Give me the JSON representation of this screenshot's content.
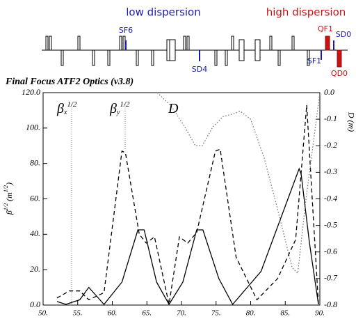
{
  "chart_data": {
    "type": "line",
    "title": "Final Focus  ATF2 Optics (v3.8)",
    "region_labels": [
      {
        "text": "low dispersion",
        "color": "#1a1aa8"
      },
      {
        "text": "high dispersion",
        "color": "#cc1111"
      }
    ],
    "lattice_labels": [
      {
        "text": "SF6",
        "color": "#1a1aa8"
      },
      {
        "text": "SD4",
        "color": "#1a1aa8"
      },
      {
        "text": "QF1",
        "color": "#cc1111"
      },
      {
        "text": "SD0",
        "color": "#1a1aa8"
      },
      {
        "text": "SF1",
        "color": "#1a1aa8"
      },
      {
        "text": "QD0",
        "color": "#cc1111"
      }
    ],
    "y_label": {
      "main": "β",
      "sup": "1/2",
      "unit": "(m",
      "unit_sup": "1/2",
      "close": ")"
    },
    "y2_label": "D  (m)",
    "xlim": [
      50,
      90
    ],
    "xticks": [
      {
        "value": 50,
        "label": "50."
      },
      {
        "value": 55,
        "label": "55."
      },
      {
        "value": 60,
        "label": "60."
      },
      {
        "value": 65,
        "label": "65."
      },
      {
        "value": 70,
        "label": "70."
      },
      {
        "value": 75,
        "label": "75."
      },
      {
        "value": 80,
        "label": "80."
      },
      {
        "value": 85,
        "label": "85."
      },
      {
        "value": 90,
        "label": "90."
      }
    ],
    "ylim": [
      0,
      120
    ],
    "yticks": [
      {
        "value": 0,
        "label": "0.0"
      },
      {
        "value": 20,
        "label": "20."
      },
      {
        "value": 40,
        "label": "40."
      },
      {
        "value": 60,
        "label": "60."
      },
      {
        "value": 80,
        "label": "80."
      },
      {
        "value": 100,
        "label": "100."
      },
      {
        "value": 120,
        "label": "120.0"
      }
    ],
    "y2lim": [
      -0.8,
      0
    ],
    "y2ticks": [
      -0.8,
      -0.7,
      -0.6,
      -0.5,
      -0.4,
      -0.3,
      -0.2,
      -0.1,
      {
        "value": 0,
        "label": "0.0"
      }
    ],
    "series": [
      {
        "name": "β",
        "subscript": "x",
        "superscript": "1/2",
        "color": "#000000",
        "dash": "none",
        "x": [
          52,
          53.3,
          55.3,
          56.6,
          58.8,
          61.4,
          63.7,
          64.6,
          66.4,
          68.2,
          70.2,
          72.2,
          73.1,
          75.4,
          77.4,
          81.5,
          87,
          87.3,
          88.5,
          89.8
        ],
        "values": [
          2,
          0.4,
          3,
          10,
          0.4,
          13,
          42.5,
          42.5,
          13,
          0.4,
          13,
          42.5,
          42.5,
          15,
          0.4,
          19,
          77,
          74,
          35,
          0.4
        ]
      },
      {
        "name": "β",
        "subscript": "y",
        "superscript": "1/2",
        "color": "#000000",
        "dash": "6,4",
        "x": [
          52,
          53.8,
          55.3,
          56.6,
          58.8,
          61.4,
          61.9,
          63.9,
          64.9,
          66.1,
          68.2,
          69.7,
          70.9,
          72.2,
          74.9,
          75.6,
          77.9,
          80.9,
          83.9,
          86.5,
          88.1,
          89.8
        ],
        "values": [
          4,
          8,
          8,
          3,
          7,
          87,
          86,
          40,
          35,
          38.5,
          0.4,
          38.5,
          35,
          41,
          87,
          88,
          27,
          3,
          15,
          37,
          113,
          0.4
        ]
      },
      {
        "name": "D",
        "color": "#777777",
        "dash": "1.5,2.5",
        "axis": "y2",
        "x": [
          66.5,
          68.5,
          70.5,
          72.0,
          73.0,
          74.5,
          76.0,
          77.5,
          78.5,
          80.0,
          82.0,
          84.0,
          86.0,
          86.8,
          88.0,
          90.0
        ],
        "values": [
          0.0,
          -0.05,
          -0.13,
          -0.2,
          -0.2,
          -0.13,
          -0.09,
          -0.08,
          -0.07,
          -0.1,
          -0.25,
          -0.45,
          -0.66,
          -0.68,
          -0.4,
          0.0
        ]
      }
    ]
  }
}
